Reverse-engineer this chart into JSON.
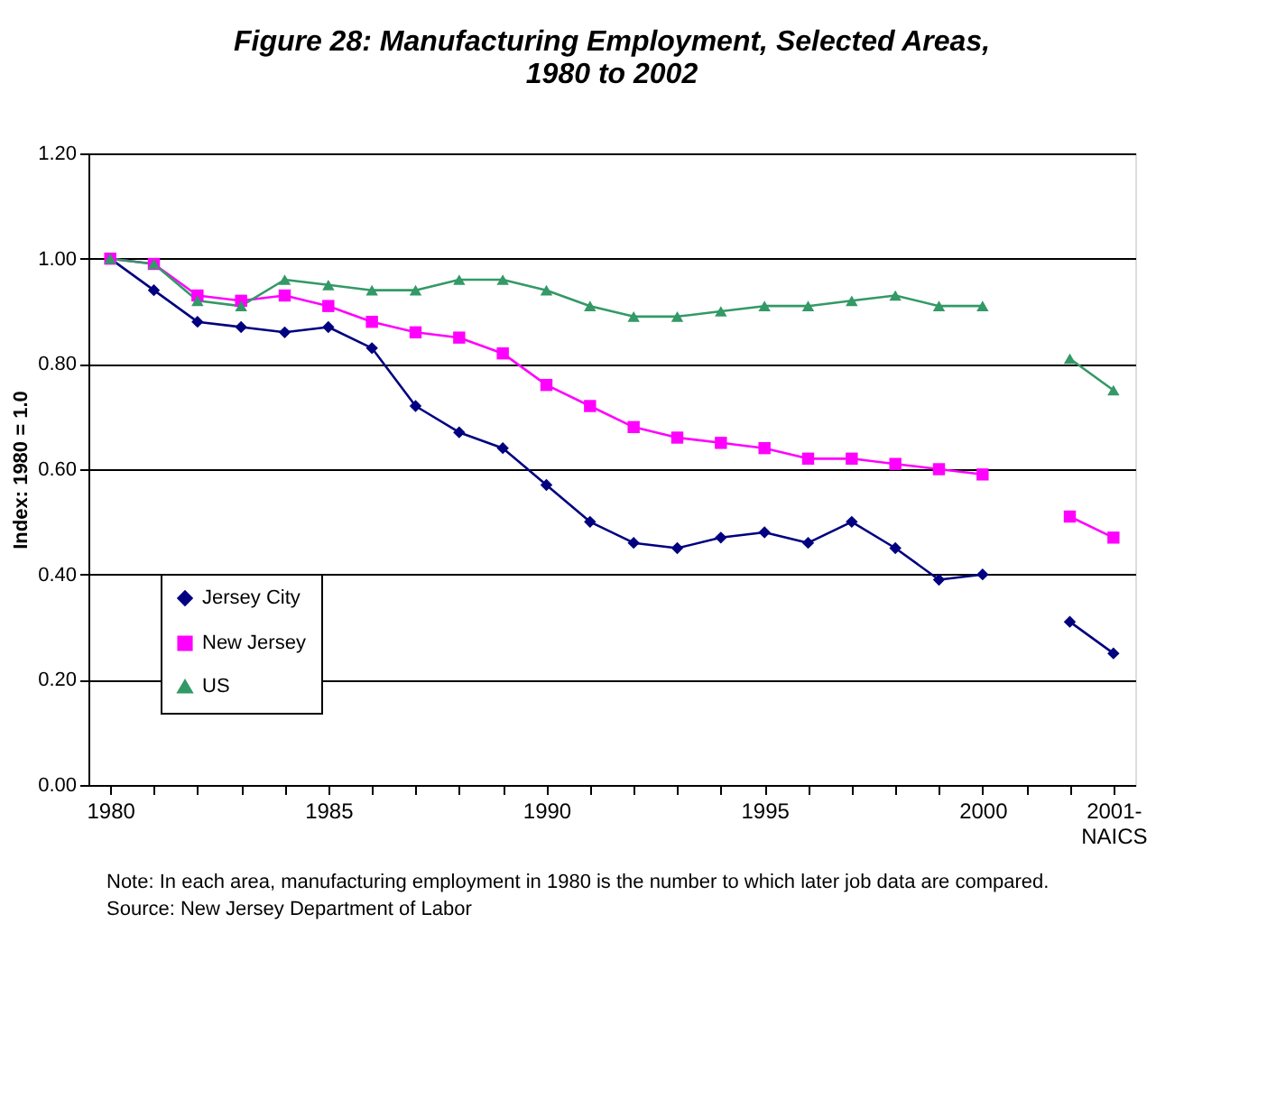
{
  "chart_data": {
    "type": "line",
    "title": "Figure 28:  Manufacturing Employment, Selected Areas,\n1980 to 2002",
    "ylabel": "Index: 1980 = 1.0",
    "categories": [
      "1980",
      null,
      null,
      null,
      null,
      "1985",
      null,
      null,
      null,
      null,
      "1990",
      null,
      null,
      null,
      null,
      "1995",
      null,
      null,
      null,
      null,
      "2000",
      null,
      null,
      "2001-\nNAICS"
    ],
    "series": [
      {
        "name": "Jersey City",
        "color": "#000080",
        "marker": "diamond",
        "values": [
          1.0,
          0.94,
          0.88,
          0.87,
          0.86,
          0.87,
          0.83,
          0.72,
          0.67,
          0.64,
          0.57,
          0.5,
          0.46,
          0.45,
          0.47,
          0.48,
          0.46,
          0.5,
          0.45,
          0.39,
          0.4,
          null,
          0.31,
          0.25
        ]
      },
      {
        "name": "New Jersey",
        "color": "#ff00ff",
        "marker": "square",
        "values": [
          1.0,
          0.99,
          0.93,
          0.92,
          0.93,
          0.91,
          0.88,
          0.86,
          0.85,
          0.82,
          0.76,
          0.72,
          0.68,
          0.66,
          0.65,
          0.64,
          0.62,
          0.62,
          0.61,
          0.6,
          0.59,
          null,
          0.51,
          0.47
        ]
      },
      {
        "name": "US",
        "color": "#339966",
        "marker": "triangle",
        "values": [
          1.0,
          0.99,
          0.92,
          0.91,
          0.96,
          0.95,
          0.94,
          0.94,
          0.96,
          0.96,
          0.94,
          0.91,
          0.89,
          0.89,
          0.9,
          0.91,
          0.91,
          0.92,
          0.93,
          0.91,
          0.91,
          null,
          0.81,
          0.75
        ]
      }
    ],
    "ylim": [
      0,
      1.2
    ],
    "yticks": [
      {
        "value": 0,
        "label": "0.00"
      },
      {
        "value": 0.2,
        "label": "0.20"
      },
      {
        "value": 0.4,
        "label": "0.40"
      },
      {
        "value": 0.6,
        "label": "0.60"
      },
      {
        "value": 0.8,
        "label": "0.80"
      },
      {
        "value": 1.0,
        "label": "1.00"
      },
      {
        "value": 1.2,
        "label": "1.20"
      }
    ],
    "grid": "y",
    "legend": "bottom left",
    "line_style": "solid",
    "annotations": [
      "Note:  In each area, manufacturing employment in 1980 is the number to which later job data are compared.",
      "Source: New Jersey Department of Labor"
    ]
  }
}
